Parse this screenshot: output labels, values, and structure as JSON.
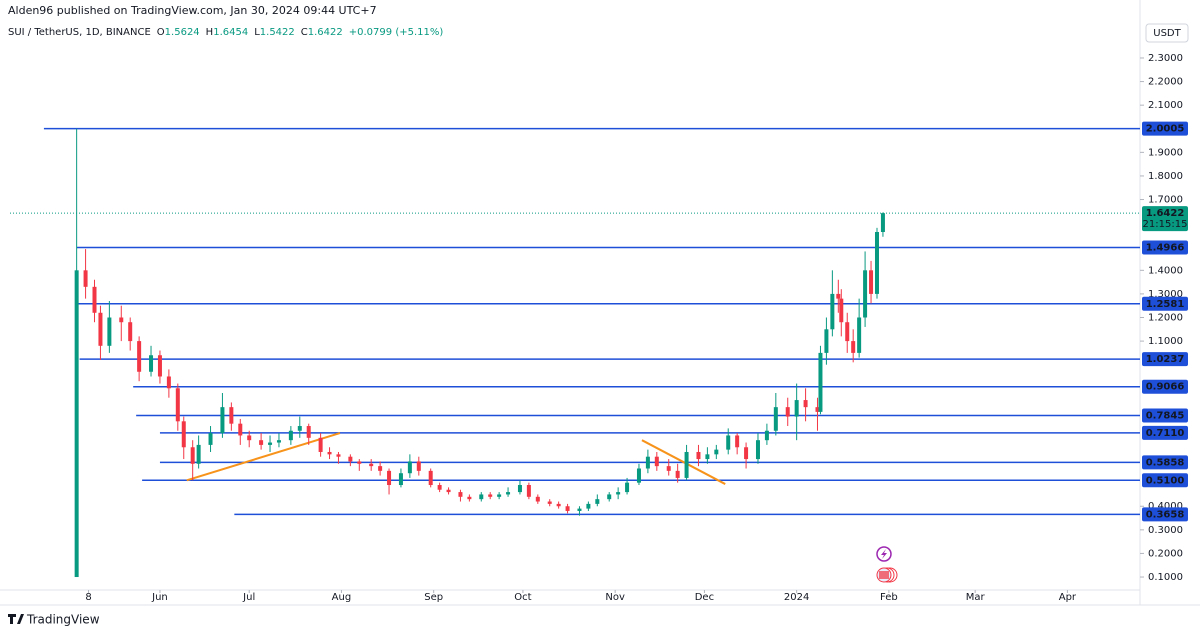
{
  "header": {
    "published": "Alden96 published on TradingView.com, Jan 30, 2024 09:44 UTC+7",
    "brand": "TradingView"
  },
  "chart_data": {
    "type": "candlestick",
    "symbol": "SUI / TetherUS, 1D, BINANCE",
    "ohlc_labels": [
      "O",
      "H",
      "L",
      "C"
    ],
    "change": "+0.0799 (+5.11%)",
    "currency": "USDT",
    "countdown": "21:15:15",
    "up_color": "#089981",
    "down_color": "#f23645",
    "level_color": "#1e4fd8",
    "trendline_color": "#f7931a",
    "grid": false,
    "xlim": [
      -19.4,
      360.4
    ],
    "xticks": [
      {
        "value": 7,
        "label": "8"
      },
      {
        "value": 31,
        "label": "Jun"
      },
      {
        "value": 61,
        "label": "Jul"
      },
      {
        "value": 92,
        "label": "Aug"
      },
      {
        "value": 123,
        "label": "Sep"
      },
      {
        "value": 153,
        "label": "Oct"
      },
      {
        "value": 184,
        "label": "Nov"
      },
      {
        "value": 214,
        "label": "Dec"
      },
      {
        "value": 245,
        "label": "2024"
      },
      {
        "value": 276,
        "label": "Feb"
      },
      {
        "value": 305,
        "label": "Mar"
      },
      {
        "value": 336,
        "label": "Apr"
      }
    ],
    "ylim": [
      0.045,
      2.355
    ],
    "yticks": [
      {
        "value": 0.1,
        "label": "0.1000"
      },
      {
        "value": 0.2,
        "label": "0.2000"
      },
      {
        "value": 0.3,
        "label": "0.3000"
      },
      {
        "value": 0.4,
        "label": "0.4000"
      },
      {
        "value": 1.1,
        "label": "1.1000"
      },
      {
        "value": 1.2,
        "label": "1.2000"
      },
      {
        "value": 1.3,
        "label": "1.3000"
      },
      {
        "value": 1.4,
        "label": "1.4000"
      },
      {
        "value": 1.7,
        "label": "1.7000"
      },
      {
        "value": 1.8,
        "label": "1.8000"
      },
      {
        "value": 1.9,
        "label": "1.9000"
      },
      {
        "value": 2.1,
        "label": "2.1000"
      },
      {
        "value": 2.2,
        "label": "2.2000"
      },
      {
        "value": 2.3,
        "label": "2.3000"
      }
    ],
    "x": [
      3,
      6,
      9,
      11,
      14,
      18,
      21,
      24,
      28,
      31,
      34,
      37,
      39,
      42,
      44,
      48,
      52,
      55,
      58,
      61,
      65,
      68,
      71,
      75,
      78,
      81,
      85,
      88,
      91,
      95,
      98,
      102,
      105,
      108,
      112,
      115,
      118,
      122,
      125,
      128,
      132,
      135,
      139,
      142,
      145,
      148,
      152,
      155,
      158,
      162,
      165,
      168,
      172,
      175,
      178,
      182,
      185,
      188,
      192,
      195,
      198,
      202,
      205,
      208,
      212,
      215,
      218,
      222,
      225,
      228,
      232,
      235,
      238,
      242,
      245,
      248,
      252,
      253,
      255,
      257,
      259,
      260,
      262,
      264,
      266,
      268,
      270,
      272,
      274
    ],
    "open": [
      0.1,
      1.4,
      1.33,
      1.22,
      1.08,
      1.2,
      1.18,
      1.1,
      0.97,
      1.04,
      0.95,
      0.9,
      0.76,
      0.65,
      0.58,
      0.66,
      0.71,
      0.82,
      0.75,
      0.7,
      0.68,
      0.66,
      0.67,
      0.68,
      0.72,
      0.74,
      0.69,
      0.63,
      0.62,
      0.61,
      0.59,
      0.58,
      0.57,
      0.55,
      0.49,
      0.54,
      0.59,
      0.55,
      0.49,
      0.47,
      0.46,
      0.44,
      0.43,
      0.45,
      0.44,
      0.45,
      0.46,
      0.49,
      0.44,
      0.42,
      0.41,
      0.4,
      0.38,
      0.39,
      0.41,
      0.43,
      0.45,
      0.46,
      0.5,
      0.56,
      0.61,
      0.57,
      0.55,
      0.52,
      0.63,
      0.6,
      0.62,
      0.64,
      0.7,
      0.65,
      0.6,
      0.68,
      0.72,
      0.82,
      0.78,
      0.85,
      0.82,
      0.8,
      1.05,
      1.15,
      1.3,
      1.28,
      1.18,
      1.1,
      1.05,
      1.2,
      1.4,
      1.3,
      1.5624
    ],
    "high": [
      2.0,
      1.49,
      1.36,
      1.25,
      1.27,
      1.25,
      1.2,
      1.12,
      1.08,
      1.06,
      0.98,
      0.92,
      0.78,
      0.68,
      0.7,
      0.74,
      0.88,
      0.84,
      0.77,
      0.72,
      0.71,
      0.7,
      0.71,
      0.74,
      0.78,
      0.75,
      0.71,
      0.65,
      0.63,
      0.62,
      0.6,
      0.6,
      0.59,
      0.56,
      0.56,
      0.62,
      0.61,
      0.56,
      0.5,
      0.48,
      0.47,
      0.45,
      0.46,
      0.46,
      0.46,
      0.48,
      0.51,
      0.5,
      0.45,
      0.43,
      0.42,
      0.41,
      0.4,
      0.42,
      0.45,
      0.46,
      0.48,
      0.52,
      0.58,
      0.64,
      0.63,
      0.6,
      0.58,
      0.66,
      0.66,
      0.65,
      0.66,
      0.73,
      0.71,
      0.67,
      0.71,
      0.75,
      0.88,
      0.86,
      0.92,
      0.9,
      0.86,
      1.08,
      1.2,
      1.4,
      1.36,
      1.32,
      1.22,
      1.15,
      1.28,
      1.48,
      1.44,
      1.58,
      1.6454
    ],
    "low": [
      0.1,
      1.28,
      1.18,
      1.02,
      1.05,
      1.1,
      1.06,
      0.93,
      0.95,
      0.92,
      0.86,
      0.72,
      0.6,
      0.51,
      0.56,
      0.63,
      0.69,
      0.72,
      0.66,
      0.65,
      0.64,
      0.63,
      0.65,
      0.66,
      0.69,
      0.66,
      0.61,
      0.6,
      0.58,
      0.57,
      0.55,
      0.55,
      0.53,
      0.45,
      0.48,
      0.52,
      0.53,
      0.48,
      0.46,
      0.45,
      0.42,
      0.42,
      0.42,
      0.43,
      0.43,
      0.44,
      0.45,
      0.43,
      0.41,
      0.4,
      0.39,
      0.37,
      0.36,
      0.38,
      0.4,
      0.42,
      0.43,
      0.45,
      0.49,
      0.54,
      0.55,
      0.53,
      0.5,
      0.51,
      0.57,
      0.58,
      0.6,
      0.62,
      0.62,
      0.56,
      0.58,
      0.66,
      0.7,
      0.74,
      0.68,
      0.76,
      0.72,
      0.79,
      1.0,
      1.12,
      1.22,
      1.12,
      1.05,
      1.01,
      1.03,
      1.16,
      1.26,
      1.28,
      1.5422
    ],
    "close": [
      1.4,
      1.33,
      1.22,
      1.08,
      1.2,
      1.18,
      1.1,
      0.97,
      1.04,
      0.95,
      0.9,
      0.76,
      0.65,
      0.58,
      0.66,
      0.71,
      0.82,
      0.75,
      0.7,
      0.68,
      0.66,
      0.67,
      0.68,
      0.72,
      0.74,
      0.69,
      0.63,
      0.62,
      0.61,
      0.59,
      0.58,
      0.57,
      0.55,
      0.49,
      0.54,
      0.59,
      0.55,
      0.49,
      0.47,
      0.46,
      0.44,
      0.43,
      0.45,
      0.44,
      0.45,
      0.46,
      0.49,
      0.44,
      0.42,
      0.41,
      0.4,
      0.38,
      0.39,
      0.41,
      0.43,
      0.45,
      0.46,
      0.5,
      0.56,
      0.61,
      0.57,
      0.55,
      0.52,
      0.63,
      0.6,
      0.62,
      0.64,
      0.7,
      0.65,
      0.6,
      0.68,
      0.72,
      0.82,
      0.78,
      0.85,
      0.82,
      0.8,
      1.05,
      1.15,
      1.3,
      1.28,
      1.18,
      1.1,
      1.05,
      1.2,
      1.4,
      1.3,
      1.5624,
      1.6422
    ],
    "levels": [
      {
        "value": 2.0005,
        "start": -8
      },
      {
        "value": 1.4966,
        "start": 3
      },
      {
        "value": 1.2581,
        "start": 3
      },
      {
        "value": 1.0237,
        "start": 4
      },
      {
        "value": 0.9066,
        "start": 22
      },
      {
        "value": 0.7845,
        "start": 23
      },
      {
        "value": 0.711,
        "label": "0.7110",
        "start": 31
      },
      {
        "value": 0.5858,
        "start": 31
      },
      {
        "value": 0.51,
        "label": "0.5100",
        "start": 25
      },
      {
        "value": 0.3658,
        "start": 56
      }
    ],
    "trendlines": [
      {
        "x": [
          40,
          91.5
        ],
        "y": [
          0.51,
          0.71
        ]
      },
      {
        "x": [
          193,
          221
        ],
        "y": [
          0.68,
          0.494
        ]
      }
    ]
  }
}
